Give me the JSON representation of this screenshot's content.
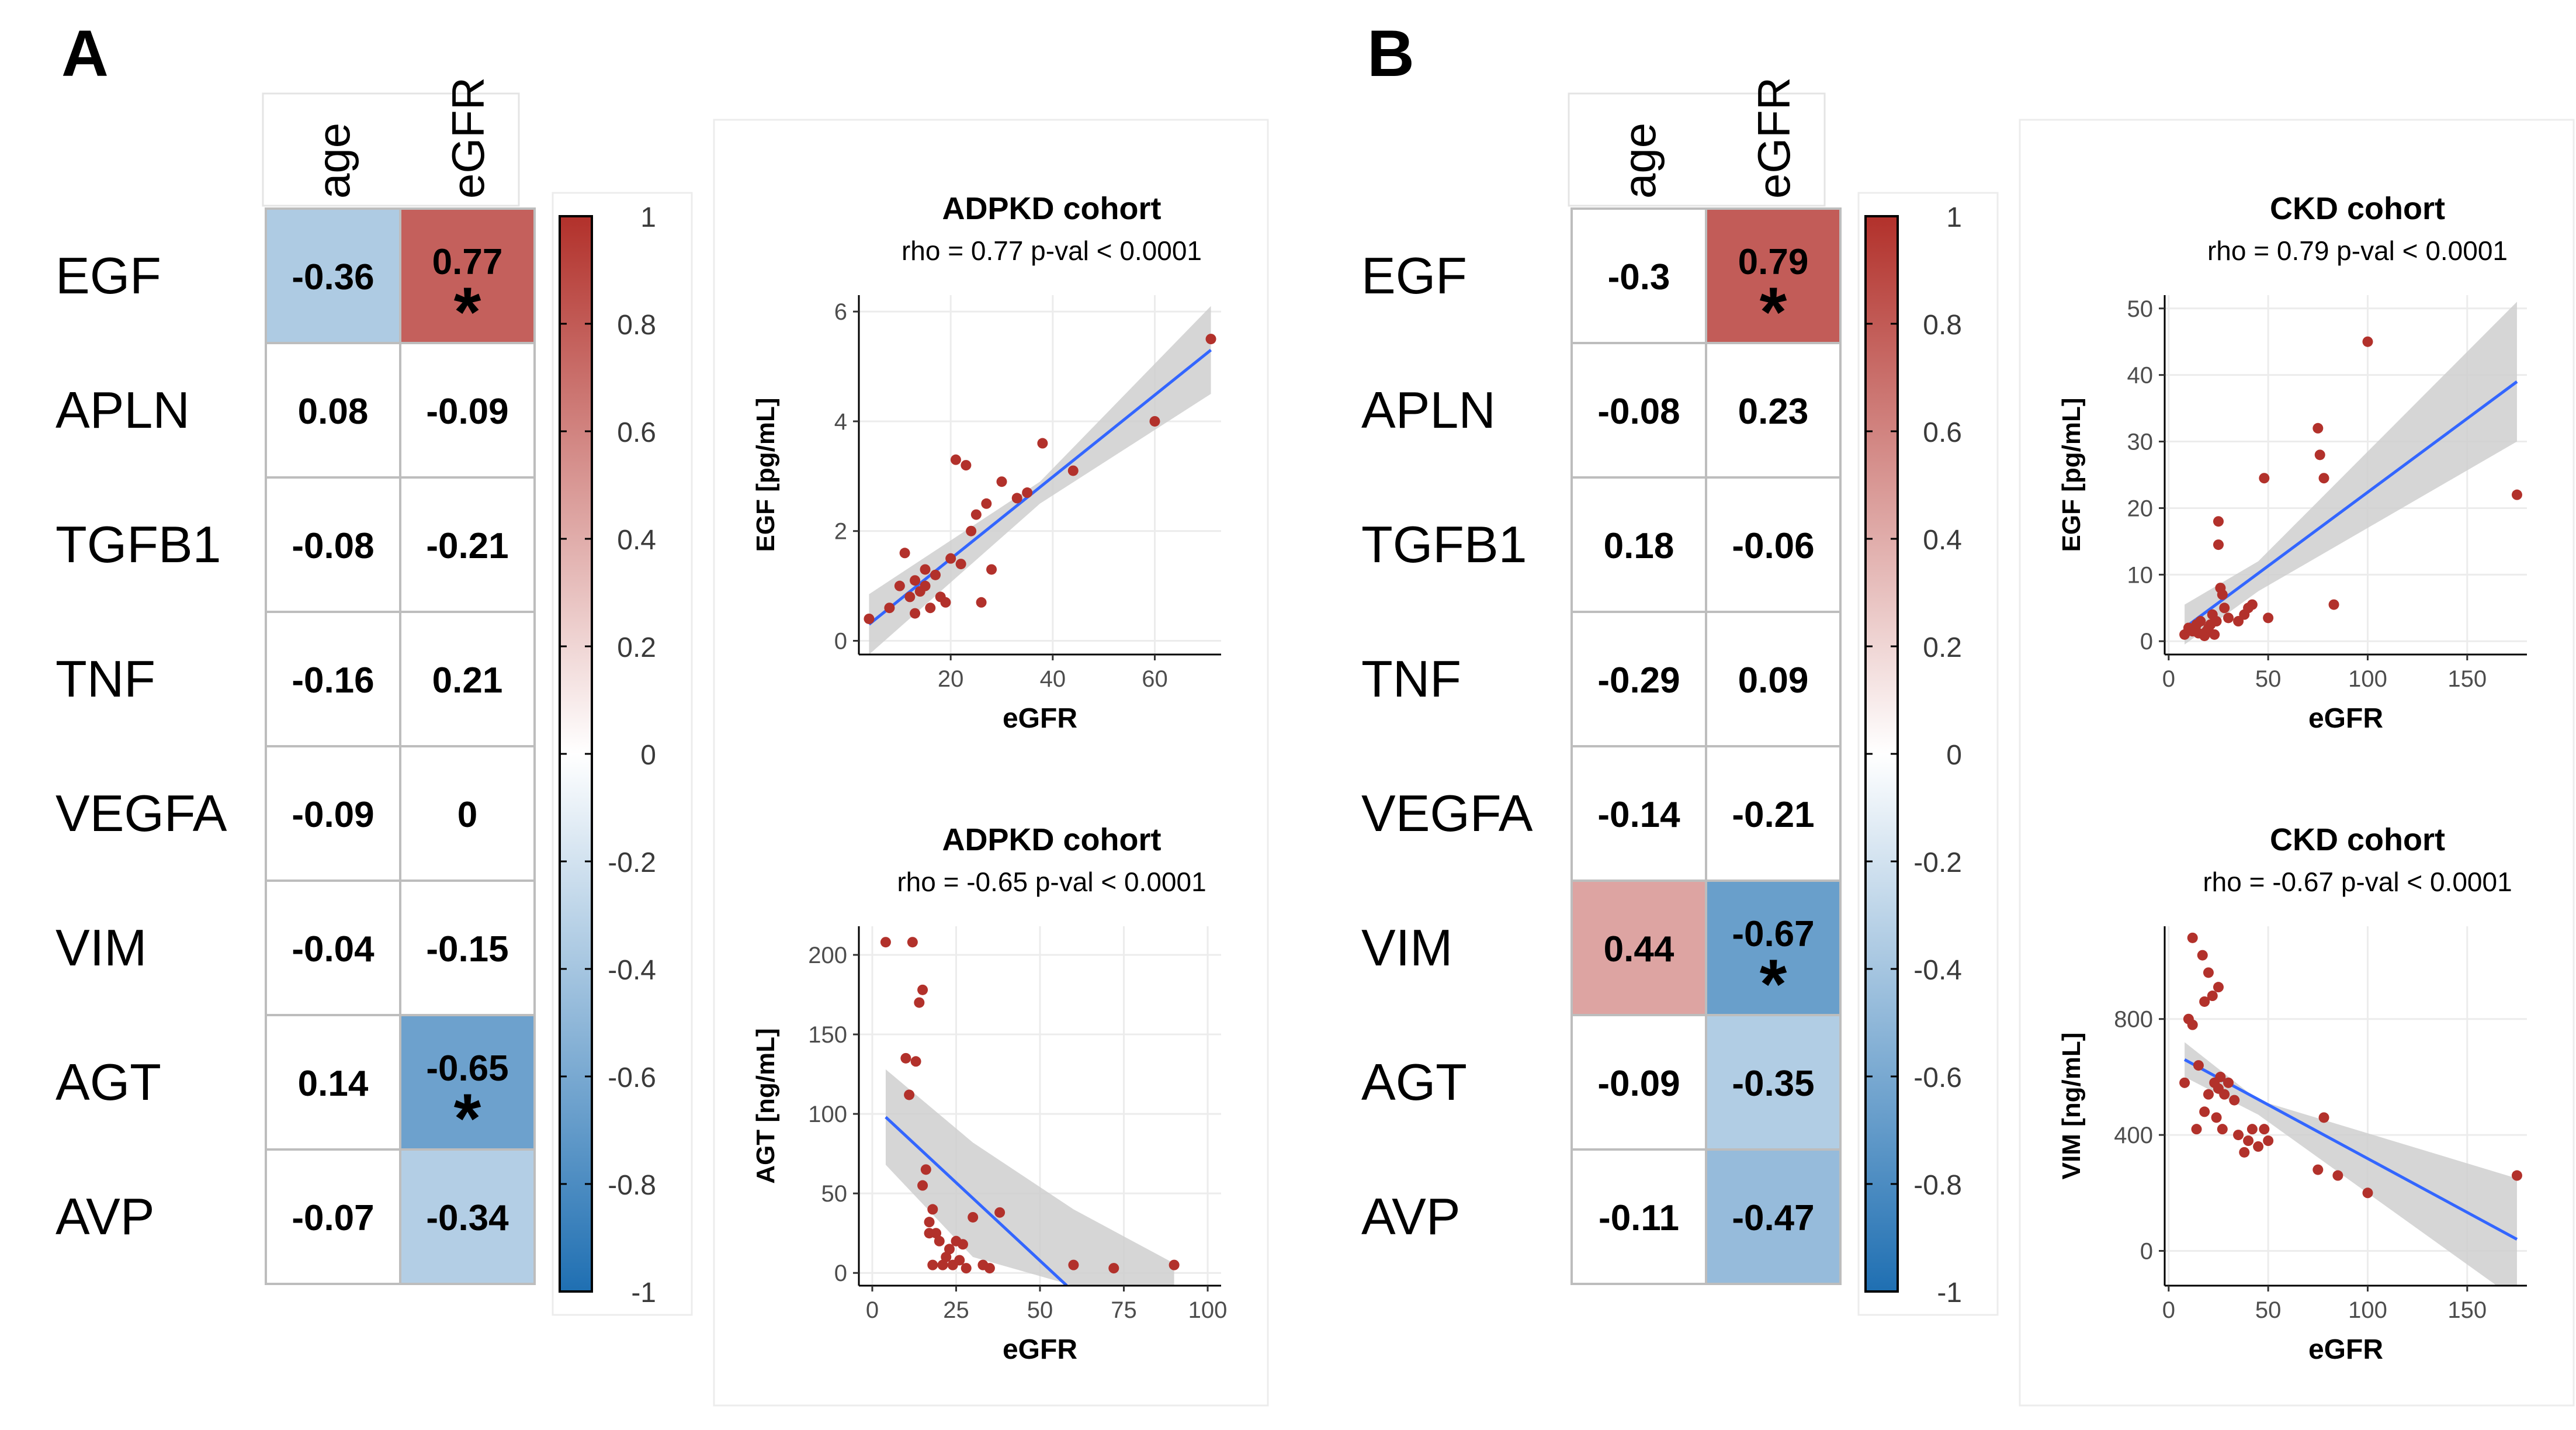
{
  "panels": [
    {
      "letter": "A",
      "columns": [
        "age",
        "eGFR"
      ],
      "rows": [
        "EGF",
        "APLN",
        "TGFB1",
        "TNF",
        "VEGFA",
        "VIM",
        "AGT",
        "AVP"
      ],
      "values": [
        [
          -0.36,
          0.77
        ],
        [
          0.08,
          -0.09
        ],
        [
          -0.08,
          -0.21
        ],
        [
          -0.16,
          0.21
        ],
        [
          -0.09,
          0
        ],
        [
          -0.04,
          -0.15
        ],
        [
          0.14,
          -0.65
        ],
        [
          -0.07,
          -0.34
        ]
      ],
      "labels": [
        [
          "-0.36",
          "0.77"
        ],
        [
          "0.08",
          "-0.09"
        ],
        [
          "-0.08",
          "-0.21"
        ],
        [
          "-0.16",
          "0.21"
        ],
        [
          "-0.09",
          "0"
        ],
        [
          "-0.04",
          "-0.15"
        ],
        [
          "0.14",
          "-0.65"
        ],
        [
          "-0.07",
          "-0.34"
        ]
      ],
      "sig": [
        [
          false,
          true
        ],
        [
          false,
          false
        ],
        [
          false,
          false
        ],
        [
          false,
          false
        ],
        [
          false,
          false
        ],
        [
          false,
          false
        ],
        [
          false,
          true
        ],
        [
          false,
          false
        ]
      ],
      "shaded": [
        [
          true,
          true
        ],
        [
          false,
          false
        ],
        [
          false,
          false
        ],
        [
          false,
          false
        ],
        [
          false,
          false
        ],
        [
          false,
          false
        ],
        [
          false,
          true
        ],
        [
          false,
          true
        ]
      ],
      "star": "*"
    },
    {
      "letter": "B",
      "columns": [
        "age",
        "eGFR"
      ],
      "rows": [
        "EGF",
        "APLN",
        "TGFB1",
        "TNF",
        "VEGFA",
        "VIM",
        "AGT",
        "AVP"
      ],
      "values": [
        [
          -0.3,
          0.79
        ],
        [
          -0.08,
          0.23
        ],
        [
          0.18,
          -0.06
        ],
        [
          -0.29,
          0.09
        ],
        [
          -0.14,
          -0.21
        ],
        [
          0.44,
          -0.67
        ],
        [
          -0.09,
          -0.35
        ],
        [
          -0.11,
          -0.47
        ]
      ],
      "labels": [
        [
          "-0.3",
          "0.79"
        ],
        [
          "-0.08",
          "0.23"
        ],
        [
          "0.18",
          "-0.06"
        ],
        [
          "-0.29",
          "0.09"
        ],
        [
          "-0.14",
          "-0.21"
        ],
        [
          "0.44",
          "-0.67"
        ],
        [
          "-0.09",
          "-0.35"
        ],
        [
          "-0.11",
          "-0.47"
        ]
      ],
      "sig": [
        [
          false,
          true
        ],
        [
          false,
          false
        ],
        [
          false,
          false
        ],
        [
          false,
          false
        ],
        [
          false,
          false
        ],
        [
          false,
          true
        ],
        [
          false,
          false
        ],
        [
          false,
          false
        ]
      ],
      "shaded": [
        [
          false,
          true
        ],
        [
          false,
          false
        ],
        [
          false,
          false
        ],
        [
          false,
          false
        ],
        [
          false,
          false
        ],
        [
          true,
          true
        ],
        [
          false,
          true
        ],
        [
          false,
          true
        ]
      ],
      "star": "*"
    }
  ],
  "colorbar": {
    "ticks": [
      1,
      0.8,
      0.6,
      0.4,
      0.2,
      0,
      -0.2,
      -0.4,
      -0.6,
      -0.8,
      -1
    ],
    "tick_labels": [
      "1",
      "0.8",
      "0.6",
      "0.4",
      "0.2",
      "0",
      "-0.2",
      "-0.4",
      "-0.6",
      "-0.8",
      "-1"
    ],
    "colors": {
      "negative": "#1f6fb2",
      "zero": "#ffffff",
      "positive": "#b2312b"
    }
  },
  "chart_data": [
    {
      "type": "scatter",
      "title": "ADPKD cohort",
      "subtitle": "rho = 0.77 p-val < 0.0001",
      "xlabel": "eGFR",
      "ylabel": "EGF [pg/mL]",
      "xlim": [
        2,
        73
      ],
      "ylim": [
        -0.25,
        6.3
      ],
      "xticks": [
        20,
        40,
        60
      ],
      "yticks": [
        0,
        2,
        4,
        6
      ],
      "x": [
        4,
        8,
        10,
        11,
        12,
        13,
        13,
        14,
        15,
        15,
        16,
        17,
        18,
        19,
        20,
        21,
        22,
        23,
        24,
        25,
        26,
        27,
        28,
        30,
        33,
        35,
        38,
        44,
        60,
        71
      ],
      "y": [
        0.4,
        0.6,
        1.0,
        1.6,
        0.8,
        1.1,
        0.5,
        0.9,
        1.3,
        1.0,
        0.6,
        1.2,
        0.8,
        0.7,
        1.5,
        3.3,
        1.4,
        3.2,
        2.0,
        2.3,
        0.7,
        2.5,
        1.3,
        2.9,
        2.6,
        2.7,
        3.6,
        3.1,
        4.0,
        5.5
      ],
      "fit": {
        "x": [
          4,
          71
        ],
        "y": [
          0.3,
          5.3
        ]
      },
      "band": {
        "x": [
          4,
          37.5,
          71
        ],
        "lower": [
          -0.25,
          2.5,
          4.5
        ],
        "upper": [
          0.85,
          2.9,
          6.1
        ]
      },
      "point_color": "#b2312b",
      "line_color": "#3366ff"
    },
    {
      "type": "scatter",
      "title": "ADPKD cohort",
      "subtitle": "rho = -0.65 p-val < 0.0001",
      "xlabel": "eGFR",
      "ylabel": "AGT [ng/mL]",
      "xlim": [
        -4,
        104
      ],
      "ylim": [
        -8,
        218
      ],
      "xticks": [
        0,
        25,
        50,
        75,
        100
      ],
      "yticks": [
        0,
        50,
        100,
        150,
        200
      ],
      "x": [
        4,
        10,
        11,
        12,
        13,
        14,
        15,
        15,
        16,
        17,
        17,
        18,
        18,
        19,
        20,
        21,
        22,
        23,
        24,
        25,
        26,
        27,
        28,
        30,
        33,
        35,
        38,
        60,
        72,
        90
      ],
      "y": [
        208,
        135,
        112,
        208,
        133,
        170,
        178,
        55,
        65,
        25,
        32,
        5,
        40,
        25,
        20,
        5,
        10,
        15,
        5,
        20,
        8,
        18,
        3,
        35,
        5,
        3,
        38,
        5,
        3,
        5
      ],
      "fit": {
        "x": [
          4,
          58
        ],
        "y": [
          98,
          -8
        ]
      },
      "band": {
        "x": [
          4,
          30,
          60,
          90
        ],
        "lower": [
          68,
          10,
          -8,
          -8
        ],
        "upper": [
          128,
          82,
          40,
          6
        ]
      },
      "point_color": "#b2312b",
      "line_color": "#3366ff"
    },
    {
      "type": "scatter",
      "title": "CKD cohort",
      "subtitle": "rho = 0.79 p-val < 0.0001",
      "xlabel": "eGFR",
      "ylabel": "EGF [pg/mL]",
      "xlim": [
        -2,
        180
      ],
      "ylim": [
        -2,
        52
      ],
      "xticks": [
        0,
        50,
        100,
        150
      ],
      "yticks": [
        0,
        10,
        20,
        30,
        40,
        50
      ],
      "x": [
        8,
        10,
        12,
        14,
        15,
        16,
        18,
        19,
        20,
        21,
        22,
        23,
        24,
        25,
        25,
        26,
        27,
        28,
        30,
        35,
        38,
        40,
        42,
        48,
        50,
        75,
        76,
        78,
        83,
        100,
        175
      ],
      "y": [
        1,
        2,
        1.5,
        2.5,
        1.2,
        3,
        0.8,
        1.5,
        2,
        2.5,
        4,
        1,
        3,
        18,
        14.5,
        8,
        7,
        5,
        3.5,
        3,
        4,
        5,
        5.5,
        24.5,
        3.5,
        32,
        28,
        24.5,
        5.5,
        45,
        22
      ],
      "fit": {
        "x": [
          8,
          175
        ],
        "y": [
          2,
          39
        ]
      },
      "band": {
        "x": [
          8,
          45,
          175
        ],
        "lower": [
          -0.5,
          7.5,
          30
        ],
        "upper": [
          5.5,
          12,
          51
        ]
      },
      "point_color": "#b2312b",
      "line_color": "#3366ff"
    },
    {
      "type": "scatter",
      "title": "CKD cohort",
      "subtitle": "rho = -0.67 p-val < 0.0001",
      "xlabel": "eGFR",
      "ylabel": "VIM [ng/mL]",
      "xlim": [
        -2,
        180
      ],
      "ylim": [
        -120,
        1120
      ],
      "xticks": [
        0,
        50,
        100,
        150
      ],
      "yticks": [
        0,
        400,
        800
      ],
      "x": [
        8,
        10,
        12,
        12,
        14,
        15,
        17,
        18,
        18,
        20,
        20,
        22,
        23,
        24,
        25,
        25,
        26,
        27,
        28,
        30,
        33,
        35,
        38,
        40,
        42,
        45,
        48,
        50,
        75,
        78,
        85,
        100,
        175
      ],
      "y": [
        580,
        800,
        780,
        1080,
        420,
        640,
        1020,
        860,
        480,
        960,
        540,
        880,
        580,
        460,
        910,
        560,
        600,
        420,
        540,
        580,
        520,
        400,
        340,
        380,
        420,
        360,
        420,
        380,
        280,
        460,
        260,
        200,
        260
      ],
      "fit": {
        "x": [
          8,
          175
        ],
        "y": [
          660,
          40
        ]
      },
      "band": {
        "x": [
          8,
          45,
          175
        ],
        "lower": [
          600,
          470,
          -170
        ],
        "upper": [
          720,
          520,
          250
        ]
      },
      "point_color": "#b2312b",
      "line_color": "#3366ff"
    }
  ]
}
